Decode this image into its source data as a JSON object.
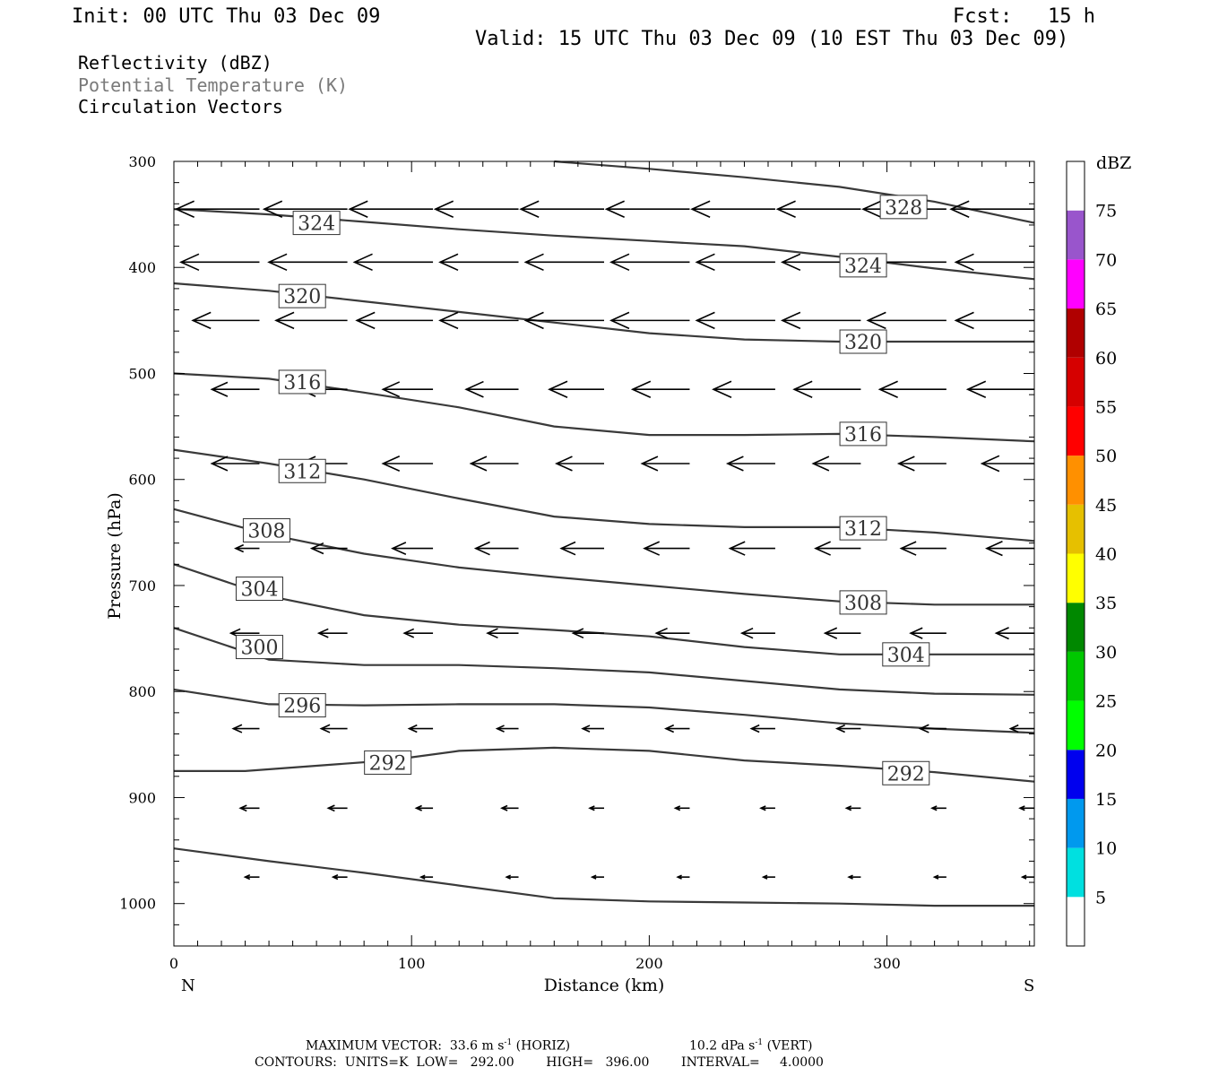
{
  "header": {
    "init": "Init: 00 UTC Thu 03 Dec 09",
    "fcst": "Fcst:   15 h",
    "valid": "Valid: 15 UTC Thu 03 Dec 09 (10 EST Thu 03 Dec 09)"
  },
  "fields": {
    "reflectivity": "Reflectivity (dBZ)",
    "theta": "Potential Temperature (K)",
    "vectors": "Circulation Vectors"
  },
  "colors": {
    "contour": "#3a3a3a",
    "theta_text": "#7a7a7a",
    "vector": "#000000"
  },
  "chart_data": {
    "type": "contour",
    "xlabel": "Distance (km)",
    "ylabel": "Pressure (hPa)",
    "xlim": [
      0,
      362
    ],
    "ylim": [
      300,
      1040
    ],
    "y_inverted": true,
    "x_ticks": [
      0,
      100,
      200,
      300
    ],
    "y_ticks": [
      300,
      400,
      500,
      600,
      700,
      800,
      900,
      1000
    ],
    "x_end_labels": {
      "left": "N",
      "right": "S"
    },
    "contours": [
      {
        "level": "328",
        "x": [
          160,
          200,
          240,
          280,
          320,
          362
        ],
        "y": [
          300,
          307,
          315,
          324,
          338,
          358
        ],
        "labels": [
          [
            307,
            343
          ]
        ]
      },
      {
        "level": "324",
        "x": [
          0,
          40,
          80,
          120,
          160,
          200,
          240,
          280,
          320,
          362
        ],
        "y": [
          345,
          350,
          357,
          364,
          370,
          375,
          380,
          390,
          401,
          411
        ],
        "labels": [
          [
            60,
            358
          ],
          [
            290,
            398
          ]
        ]
      },
      {
        "level": "320",
        "x": [
          0,
          40,
          80,
          120,
          160,
          200,
          240,
          280,
          320,
          362
        ],
        "y": [
          415,
          422,
          432,
          442,
          452,
          462,
          468,
          470,
          470,
          470
        ],
        "labels": [
          [
            54,
            427
          ],
          [
            290,
            470
          ]
        ]
      },
      {
        "level": "316",
        "x": [
          0,
          40,
          80,
          120,
          160,
          200,
          240,
          280,
          320,
          362
        ],
        "y": [
          500,
          505,
          518,
          532,
          550,
          558,
          558,
          557,
          560,
          564
        ],
        "labels": [
          [
            54,
            508
          ],
          [
            290,
            557
          ]
        ]
      },
      {
        "level": "312",
        "x": [
          0,
          40,
          80,
          120,
          160,
          200,
          240,
          280,
          320,
          362
        ],
        "y": [
          572,
          585,
          600,
          618,
          635,
          642,
          645,
          645,
          650,
          658
        ],
        "labels": [
          [
            54,
            592
          ],
          [
            290,
            646
          ]
        ]
      },
      {
        "level": "308",
        "x": [
          0,
          40,
          80,
          120,
          160,
          200,
          240,
          280,
          320,
          362
        ],
        "y": [
          628,
          652,
          670,
          683,
          692,
          700,
          708,
          715,
          718,
          718
        ],
        "labels": [
          [
            39,
            648
          ],
          [
            290,
            716
          ]
        ]
      },
      {
        "level": "304",
        "x": [
          0,
          40,
          80,
          120,
          160,
          200,
          240,
          280,
          320,
          362
        ],
        "y": [
          680,
          710,
          728,
          737,
          742,
          748,
          758,
          765,
          765,
          765
        ],
        "labels": [
          [
            36,
            703
          ],
          [
            308,
            765
          ]
        ]
      },
      {
        "level": "300",
        "x": [
          0,
          40,
          80,
          120,
          160,
          200,
          240,
          280,
          320,
          362
        ],
        "y": [
          740,
          770,
          775,
          775,
          778,
          782,
          790,
          798,
          802,
          803
        ],
        "labels": [
          [
            36,
            758
          ]
        ]
      },
      {
        "level": "296",
        "x": [
          0,
          40,
          80,
          120,
          160,
          200,
          240,
          280,
          320,
          362
        ],
        "y": [
          798,
          812,
          813,
          812,
          812,
          815,
          822,
          830,
          835,
          839
        ],
        "labels": [
          [
            54,
            813
          ]
        ]
      },
      {
        "level": "292",
        "x": [
          0,
          30,
          60,
          90,
          120,
          160,
          200,
          240,
          280,
          320,
          362
        ],
        "y": [
          875,
          875,
          870,
          865,
          856,
          853,
          856,
          865,
          870,
          876,
          885
        ],
        "labels": [
          [
            90,
            867
          ],
          [
            308,
            877
          ]
        ]
      },
      {
        "level": "",
        "x": [
          0,
          40,
          80,
          120,
          160,
          200,
          240,
          280,
          320,
          362
        ],
        "y": [
          948,
          960,
          971,
          983,
          995,
          998,
          999,
          1000,
          1002,
          1002
        ],
        "labels": []
      }
    ],
    "vector_rows": [
      {
        "p": 345,
        "x": [
          36,
          73,
          109,
          145,
          181,
          217,
          253,
          289,
          325,
          362
        ],
        "len": [
          35,
          35,
          35,
          35,
          35,
          35,
          35,
          35,
          35,
          35
        ]
      },
      {
        "p": 395,
        "x": [
          36,
          73,
          109,
          145,
          181,
          217,
          253,
          289,
          325,
          362
        ],
        "len": [
          33,
          33,
          33,
          33,
          33,
          33,
          33,
          33,
          33,
          33
        ]
      },
      {
        "p": 450,
        "x": [
          36,
          73,
          109,
          145,
          181,
          217,
          253,
          289,
          325,
          362
        ],
        "len": [
          28,
          30,
          32,
          33,
          33,
          33,
          33,
          33,
          33,
          33
        ]
      },
      {
        "p": 515,
        "x": [
          36,
          73,
          109,
          145,
          181,
          217,
          253,
          289,
          325,
          362
        ],
        "len": [
          20,
          20,
          21,
          22,
          23,
          24,
          26,
          28,
          28,
          28
        ]
      },
      {
        "p": 585,
        "x": [
          36,
          73,
          109,
          145,
          181,
          217,
          253,
          289,
          325,
          362
        ],
        "len": [
          20,
          20,
          21,
          20,
          20,
          20,
          20,
          20,
          20,
          22
        ]
      },
      {
        "p": 665,
        "x": [
          36,
          73,
          109,
          145,
          181,
          217,
          253,
          289,
          325,
          362
        ],
        "len": [
          10,
          15,
          17,
          18,
          18,
          19,
          19,
          19,
          19,
          20
        ]
      },
      {
        "p": 745,
        "x": [
          36,
          73,
          109,
          145,
          181,
          217,
          253,
          289,
          325,
          362
        ],
        "len": [
          12,
          12,
          12,
          13,
          13,
          14,
          14,
          15,
          15,
          16
        ]
      },
      {
        "p": 835,
        "x": [
          36,
          73,
          109,
          145,
          181,
          217,
          253,
          289,
          325,
          362
        ],
        "len": [
          11,
          11,
          10,
          9,
          9,
          10,
          10,
          10,
          11,
          10
        ]
      },
      {
        "p": 910,
        "x": [
          36,
          73,
          109,
          145,
          181,
          217,
          253,
          289,
          325,
          362
        ],
        "len": [
          8,
          8,
          7,
          7,
          6,
          6,
          6,
          6,
          6,
          6
        ]
      },
      {
        "p": 975,
        "x": [
          36,
          73,
          109,
          145,
          181,
          217,
          253,
          289,
          325,
          362
        ],
        "len": [
          6,
          6,
          5,
          5,
          5,
          5,
          5,
          5,
          5,
          5
        ]
      }
    ],
    "colorbar": {
      "unit": "dBZ",
      "levels": [
        "5",
        "10",
        "15",
        "20",
        "25",
        "30",
        "35",
        "40",
        "45",
        "50",
        "55",
        "60",
        "65",
        "70",
        "75"
      ],
      "colors": [
        "#ffffff",
        "#00e0e0",
        "#0099ee",
        "#0000ee",
        "#00ff00",
        "#00c800",
        "#008800",
        "#ffff00",
        "#e6c000",
        "#ff9000",
        "#ff0000",
        "#d60000",
        "#b00000",
        "#ff00ff",
        "#9955cc",
        "#ffffff"
      ]
    }
  },
  "footer": {
    "max_vector": "MAXIMUM VECTOR:  33.6 m s",
    "max_vector_sup": "-1",
    "horiz": "(HORIZ)",
    "vert_val": "10.2 dPa s",
    "vert_sup": "-1",
    "vert": "(VERT)",
    "contours": "CONTOURS:  UNITS=K  LOW=   292.00        HIGH=   396.00        INTERVAL=     4.0000"
  }
}
